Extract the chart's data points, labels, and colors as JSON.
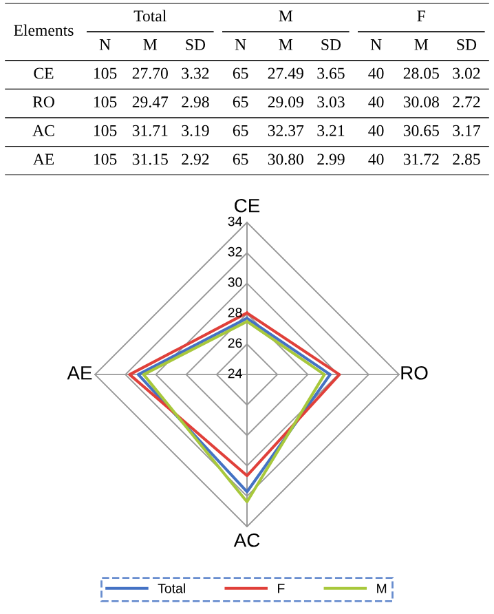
{
  "chart_data": [
    {
      "type": "other",
      "annotations": [
        "Elements",
        "Total",
        "M",
        "F"
      ],
      "categories": [
        "N",
        "M",
        "SD",
        "N",
        "M",
        "SD",
        "N",
        "M",
        "SD"
      ],
      "y_categories": [
        "CE",
        "RO",
        "AC",
        "AE"
      ],
      "cell_labels": [
        [
          "105",
          "27.70",
          "3.32",
          "65",
          "27.49",
          "3.65",
          "40",
          "28.05",
          "3.02"
        ],
        [
          "105",
          "29.47",
          "2.98",
          "65",
          "29.09",
          "3.03",
          "40",
          "30.08",
          "2.72"
        ],
        [
          "105",
          "31.71",
          "3.19",
          "65",
          "32.37",
          "3.21",
          "40",
          "30.65",
          "3.17"
        ],
        [
          "105",
          "31.15",
          "2.92",
          "65",
          "30.80",
          "2.99",
          "40",
          "31.72",
          "2.85"
        ]
      ]
    },
    {
      "type": "radar",
      "categories": [
        "CE",
        "RO",
        "AC",
        "AE"
      ],
      "ylim": [
        24,
        34
      ],
      "yticks": [
        24,
        26,
        28,
        30,
        32,
        34
      ],
      "legend": "bottom",
      "marker": "none",
      "series": [
        {
          "name": "Total",
          "color": "#4472c4",
          "values": [
            27.7,
            29.47,
            31.71,
            31.15
          ]
        },
        {
          "name": "F",
          "color": "#e0403a",
          "values": [
            28.05,
            30.08,
            30.65,
            31.72
          ]
        },
        {
          "name": "M",
          "color": "#a8c83c",
          "values": [
            27.49,
            29.09,
            32.37,
            30.8
          ]
        }
      ]
    }
  ]
}
